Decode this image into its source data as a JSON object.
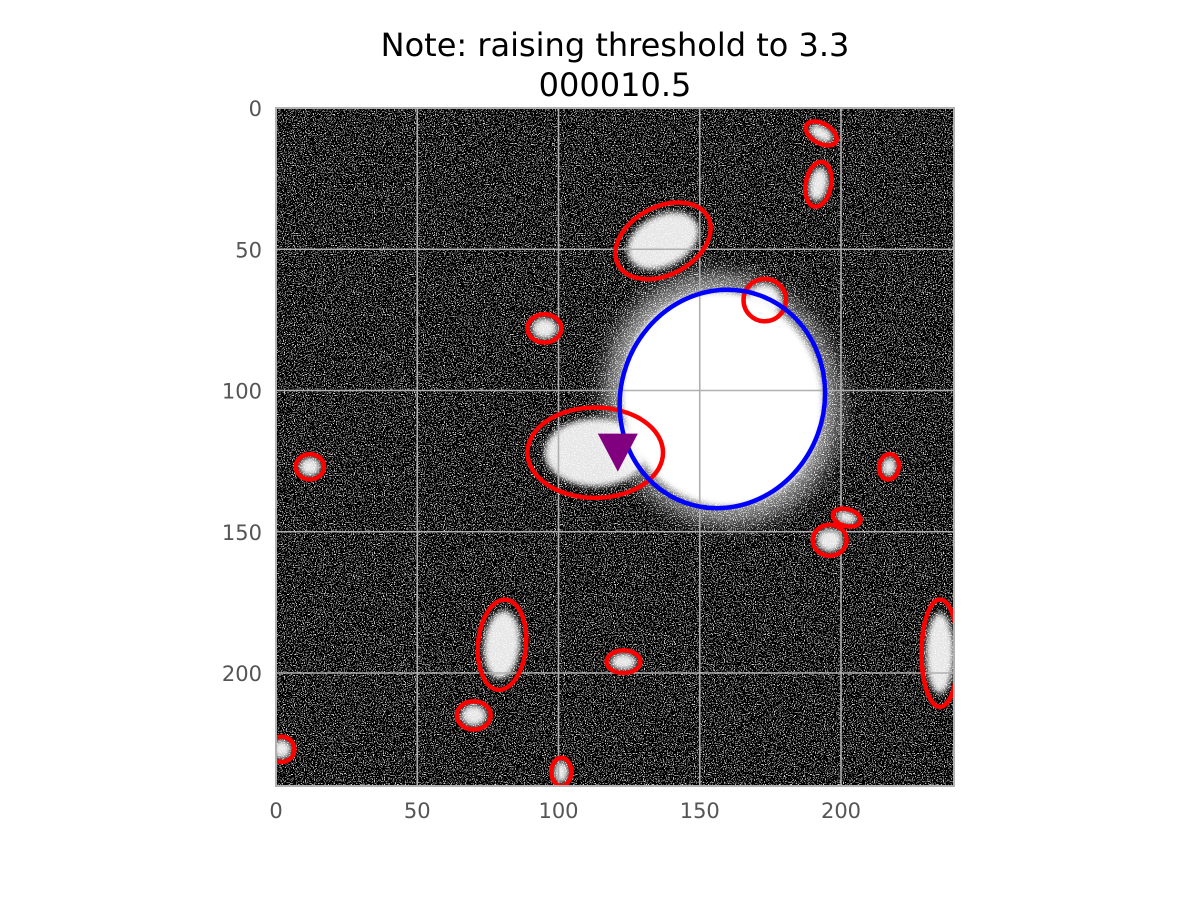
{
  "title": {
    "line1": "Note: raising threshold to 3.3",
    "line2": "000010.5"
  },
  "chart_data": {
    "type": "image",
    "title": "Note: raising threshold to 3.3\n000010.5",
    "xlabel": "",
    "ylabel": "",
    "xlim": [
      0,
      240
    ],
    "ylim": [
      240,
      0
    ],
    "grid": true,
    "xticks": [
      0,
      50,
      100,
      150,
      200
    ],
    "yticks": [
      0,
      50,
      100,
      150,
      200
    ],
    "image": "grayscale noise field with bright sources",
    "colors": {
      "background": "#000000",
      "source_ellipse": "#ff0000",
      "target_ellipse": "#0000ff",
      "marker": "#800080",
      "grid": "#b0b0b0"
    },
    "sources": [
      {
        "x": 137,
        "y": 47,
        "a": 18,
        "b": 12,
        "angle": 28
      },
      {
        "x": 193,
        "y": 9,
        "a": 6,
        "b": 3.5,
        "angle": -30
      },
      {
        "x": 192,
        "y": 27,
        "a": 8,
        "b": 4.5,
        "angle": 80
      },
      {
        "x": 173,
        "y": 68,
        "a": 7.5,
        "b": 7.5,
        "angle": 0
      },
      {
        "x": 95,
        "y": 78,
        "a": 6,
        "b": 5,
        "angle": 0
      },
      {
        "x": 113,
        "y": 122,
        "a": 24,
        "b": 16,
        "angle": 0
      },
      {
        "x": 12,
        "y": 127,
        "a": 5,
        "b": 4.5,
        "angle": 0
      },
      {
        "x": 217,
        "y": 127,
        "a": 4.5,
        "b": 3.5,
        "angle": 80
      },
      {
        "x": 202,
        "y": 145,
        "a": 5,
        "b": 3,
        "angle": -15
      },
      {
        "x": 196,
        "y": 153,
        "a": 6,
        "b": 5.5,
        "angle": 0
      },
      {
        "x": 80,
        "y": 190,
        "a": 16,
        "b": 8.5,
        "angle": 85
      },
      {
        "x": 123,
        "y": 196,
        "a": 6,
        "b": 4,
        "angle": 0
      },
      {
        "x": 235,
        "y": 193,
        "a": 19,
        "b": 6.5,
        "angle": 90
      },
      {
        "x": 70,
        "y": 215,
        "a": 6,
        "b": 5,
        "angle": 0
      },
      {
        "x": 2,
        "y": 227,
        "a": 4.5,
        "b": 4.5,
        "angle": 0
      },
      {
        "x": 101,
        "y": 235,
        "a": 5,
        "b": 3.5,
        "angle": 90
      }
    ],
    "target": {
      "x": 158,
      "y": 103,
      "a": 39,
      "b": 36,
      "angle": 70
    },
    "marker": {
      "x": 121,
      "y": 122,
      "shape": "triangle-down"
    }
  }
}
